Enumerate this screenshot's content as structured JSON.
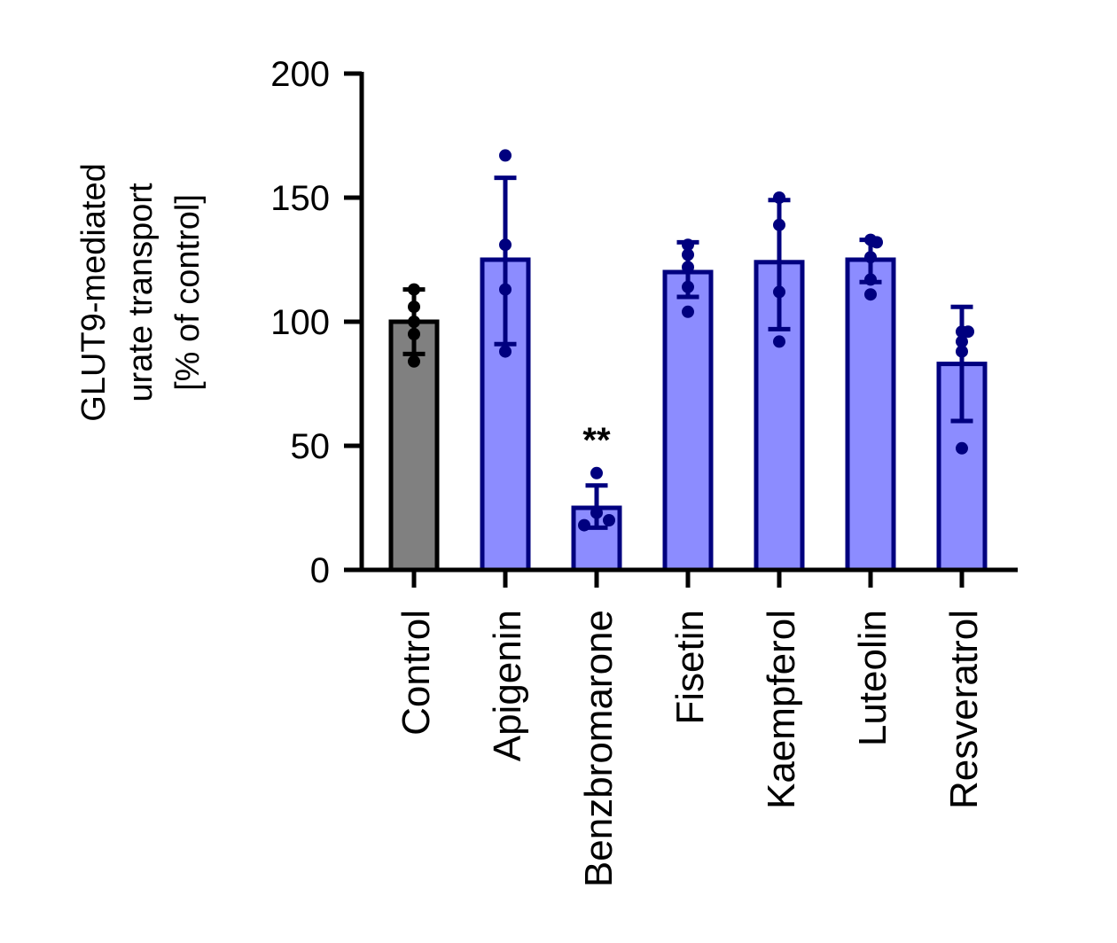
{
  "chart_data": {
    "type": "bar",
    "title": "",
    "xlabel": "",
    "ylabel_lines": [
      "GLUT9-mediated",
      "urate transport",
      "[% of control]"
    ],
    "ylim": [
      0,
      200
    ],
    "y_ticks": [
      0,
      50,
      100,
      150,
      200
    ],
    "grid": false,
    "legend": "none",
    "categories": [
      "Control",
      "Apigenin",
      "Benzbromarone",
      "Fisetin",
      "Kaempferol",
      "Luteolin",
      "Resveratrol"
    ],
    "values": [
      100,
      125,
      25,
      120,
      124,
      125,
      83
    ],
    "error_low": [
      87,
      91,
      17,
      110,
      97,
      116,
      60
    ],
    "error_high": [
      113,
      158,
      34,
      132,
      149,
      133,
      106
    ],
    "points": [
      [
        84,
        95,
        100,
        106,
        113
      ],
      [
        88,
        113,
        131,
        167
      ],
      [
        18,
        20,
        23,
        39
      ],
      [
        104,
        114,
        122,
        127,
        131
      ],
      [
        92,
        112,
        139,
        150
      ],
      [
        111,
        117,
        126,
        132,
        133
      ],
      [
        49,
        88,
        92,
        96,
        96
      ]
    ],
    "annotations": [
      {
        "category": "Benzbromarone",
        "text": "**"
      }
    ],
    "colors": {
      "control_fill": "#808080",
      "control_edge": "#000000",
      "treatment_fill": "#8c8cff",
      "treatment_edge": "#00007f"
    }
  }
}
